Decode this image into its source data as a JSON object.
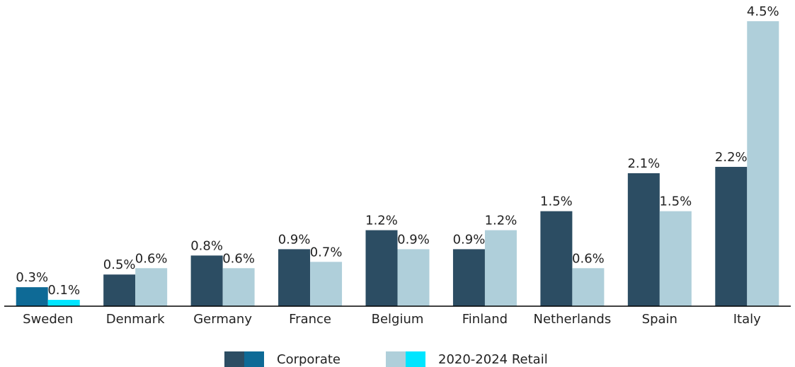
{
  "chart_data": {
    "type": "bar",
    "categories": [
      "Sweden",
      "Denmark",
      "Germany",
      "France",
      "Belgium",
      "Finland",
      "Netherlands",
      "Spain",
      "Italy"
    ],
    "series": [
      {
        "name": "Corporate",
        "color": "#2c4d63",
        "colors": [
          "#0e6a96",
          "#2c4d63",
          "#2c4d63",
          "#2c4d63",
          "#2c4d63",
          "#2c4d63",
          "#2c4d63",
          "#2c4d63",
          "#2c4d63"
        ],
        "values": [
          0.3,
          0.5,
          0.8,
          0.9,
          1.2,
          0.9,
          1.5,
          2.1,
          2.2
        ],
        "value_labels": [
          "0.3%",
          "0.5%",
          "0.8%",
          "0.9%",
          "1.2%",
          "0.9%",
          "1.5%",
          "2.1%",
          "2.2%"
        ]
      },
      {
        "name": "2020-2024 Retail",
        "color": "#afcfda",
        "colors": [
          "#00e5ff",
          "#afcfda",
          "#afcfda",
          "#afcfda",
          "#afcfda",
          "#afcfda",
          "#afcfda",
          "#afcfda",
          "#afcfda"
        ],
        "values": [
          0.1,
          0.6,
          0.6,
          0.7,
          0.9,
          1.2,
          0.6,
          1.5,
          4.5
        ],
        "value_labels": [
          "0.1%",
          "0.6%",
          "0.6%",
          "0.7%",
          "0.9%",
          "1.2%",
          "0.6%",
          "1.5%",
          "4.5%"
        ]
      }
    ],
    "ylim": [
      0,
      4.5
    ],
    "legend": "bottom"
  }
}
